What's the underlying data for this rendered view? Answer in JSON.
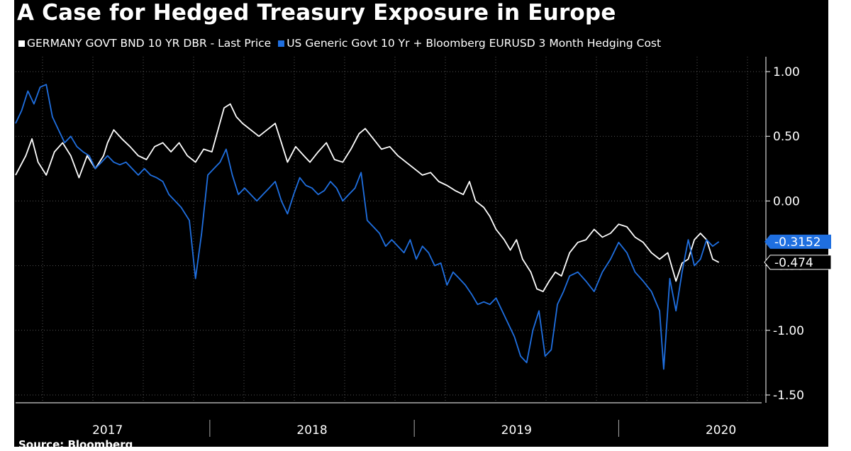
{
  "colors": {
    "background": "#000000",
    "germany": "#ffffff",
    "us_hedged": "#1f6fe0",
    "grid": "#555555",
    "text": "#ffffff"
  },
  "chart_data": {
    "type": "line",
    "title": "A Case for Hedged Treasury Exposure in Europe",
    "source": "Source: Bloomberg",
    "xlabel": "",
    "ylabel": "",
    "xlim": [
      2016.55,
      2020.22
    ],
    "ylim": [
      -1.5,
      1.0
    ],
    "y_ticks": [
      1.0,
      0.5,
      0.0,
      -0.5,
      -1.0,
      -1.5
    ],
    "y_tick_labels": [
      "1.00",
      "0.50",
      "0.00",
      "-0.50",
      "-1.00",
      "-1.50"
    ],
    "x_tick_labels": [
      {
        "label": "2017",
        "at": 2017.0
      },
      {
        "label": "2018",
        "at": 2018.0
      },
      {
        "label": "2019",
        "at": 2019.0
      },
      {
        "label": "2020",
        "at": 2020.0
      }
    ],
    "x_separators": [
      2017.5,
      2018.5,
      2019.5
    ],
    "grid": true,
    "legend_position": "top-left",
    "series": [
      {
        "name": "GERMANY GOVT BND 10 YR DBR - Last Price",
        "color": "#ffffff",
        "last_value": -0.474,
        "last_value_label": "-0.474",
        "points": [
          [
            2016.55,
            0.2
          ],
          [
            2016.6,
            0.35
          ],
          [
            2016.63,
            0.48
          ],
          [
            2016.66,
            0.3
          ],
          [
            2016.7,
            0.2
          ],
          [
            2016.74,
            0.38
          ],
          [
            2016.78,
            0.45
          ],
          [
            2016.82,
            0.35
          ],
          [
            2016.86,
            0.18
          ],
          [
            2016.9,
            0.35
          ],
          [
            2016.94,
            0.25
          ],
          [
            2016.98,
            0.35
          ],
          [
            2017.0,
            0.45
          ],
          [
            2017.03,
            0.55
          ],
          [
            2017.07,
            0.48
          ],
          [
            2017.11,
            0.42
          ],
          [
            2017.15,
            0.35
          ],
          [
            2017.19,
            0.32
          ],
          [
            2017.23,
            0.42
          ],
          [
            2017.27,
            0.45
          ],
          [
            2017.31,
            0.38
          ],
          [
            2017.35,
            0.45
          ],
          [
            2017.39,
            0.35
          ],
          [
            2017.43,
            0.3
          ],
          [
            2017.47,
            0.4
          ],
          [
            2017.51,
            0.38
          ],
          [
            2017.54,
            0.55
          ],
          [
            2017.57,
            0.72
          ],
          [
            2017.6,
            0.75
          ],
          [
            2017.63,
            0.65
          ],
          [
            2017.66,
            0.6
          ],
          [
            2017.7,
            0.55
          ],
          [
            2017.74,
            0.5
          ],
          [
            2017.78,
            0.55
          ],
          [
            2017.82,
            0.6
          ],
          [
            2017.85,
            0.45
          ],
          [
            2017.88,
            0.3
          ],
          [
            2017.92,
            0.42
          ],
          [
            2017.96,
            0.35
          ],
          [
            2017.99,
            0.3
          ],
          [
            2018.03,
            0.38
          ],
          [
            2018.07,
            0.45
          ],
          [
            2018.11,
            0.32
          ],
          [
            2018.15,
            0.3
          ],
          [
            2018.19,
            0.4
          ],
          [
            2018.23,
            0.52
          ],
          [
            2018.26,
            0.56
          ],
          [
            2018.3,
            0.48
          ],
          [
            2018.34,
            0.4
          ],
          [
            2018.38,
            0.42
          ],
          [
            2018.42,
            0.35
          ],
          [
            2018.46,
            0.3
          ],
          [
            2018.5,
            0.25
          ],
          [
            2018.54,
            0.2
          ],
          [
            2018.58,
            0.22
          ],
          [
            2018.62,
            0.15
          ],
          [
            2018.66,
            0.12
          ],
          [
            2018.7,
            0.08
          ],
          [
            2018.74,
            0.05
          ],
          [
            2018.77,
            0.15
          ],
          [
            2018.8,
            0.0
          ],
          [
            2018.84,
            -0.05
          ],
          [
            2018.87,
            -0.12
          ],
          [
            2018.9,
            -0.22
          ],
          [
            2018.94,
            -0.3
          ],
          [
            2018.97,
            -0.38
          ],
          [
            2019.0,
            -0.3
          ],
          [
            2019.03,
            -0.45
          ],
          [
            2019.07,
            -0.55
          ],
          [
            2019.1,
            -0.68
          ],
          [
            2019.13,
            -0.7
          ],
          [
            2019.16,
            -0.62
          ],
          [
            2019.19,
            -0.55
          ],
          [
            2019.22,
            -0.58
          ],
          [
            2019.26,
            -0.4
          ],
          [
            2019.3,
            -0.32
          ],
          [
            2019.34,
            -0.3
          ],
          [
            2019.38,
            -0.22
          ],
          [
            2019.42,
            -0.28
          ],
          [
            2019.46,
            -0.25
          ],
          [
            2019.5,
            -0.18
          ],
          [
            2019.54,
            -0.2
          ],
          [
            2019.58,
            -0.28
          ],
          [
            2019.62,
            -0.32
          ],
          [
            2019.66,
            -0.4
          ],
          [
            2019.7,
            -0.45
          ],
          [
            2019.74,
            -0.4
          ],
          [
            2019.78,
            -0.62
          ],
          [
            2019.81,
            -0.48
          ],
          [
            2019.84,
            -0.45
          ],
          [
            2019.87,
            -0.3
          ],
          [
            2019.9,
            -0.25
          ],
          [
            2019.93,
            -0.3
          ],
          [
            2019.96,
            -0.45
          ],
          [
            2019.99,
            -0.474
          ]
        ]
      },
      {
        "name": "US Generic Govt 10 Yr + Bloomberg EURUSD 3 Month Hedging Cost",
        "color": "#1f6fe0",
        "last_value": -0.3152,
        "last_value_label": "-0.3152",
        "points": [
          [
            2016.55,
            0.6
          ],
          [
            2016.58,
            0.7
          ],
          [
            2016.61,
            0.85
          ],
          [
            2016.64,
            0.75
          ],
          [
            2016.67,
            0.88
          ],
          [
            2016.7,
            0.9
          ],
          [
            2016.73,
            0.65
          ],
          [
            2016.76,
            0.55
          ],
          [
            2016.79,
            0.45
          ],
          [
            2016.82,
            0.5
          ],
          [
            2016.85,
            0.42
          ],
          [
            2016.88,
            0.38
          ],
          [
            2016.91,
            0.35
          ],
          [
            2016.94,
            0.25
          ],
          [
            2016.97,
            0.3
          ],
          [
            2017.0,
            0.35
          ],
          [
            2017.03,
            0.3
          ],
          [
            2017.06,
            0.28
          ],
          [
            2017.09,
            0.3
          ],
          [
            2017.12,
            0.25
          ],
          [
            2017.15,
            0.2
          ],
          [
            2017.18,
            0.25
          ],
          [
            2017.21,
            0.2
          ],
          [
            2017.24,
            0.18
          ],
          [
            2017.27,
            0.15
          ],
          [
            2017.3,
            0.05
          ],
          [
            2017.33,
            0.0
          ],
          [
            2017.36,
            -0.05
          ],
          [
            2017.4,
            -0.15
          ],
          [
            2017.43,
            -0.6
          ],
          [
            2017.46,
            -0.25
          ],
          [
            2017.49,
            0.2
          ],
          [
            2017.52,
            0.25
          ],
          [
            2017.55,
            0.3
          ],
          [
            2017.58,
            0.4
          ],
          [
            2017.61,
            0.2
          ],
          [
            2017.64,
            0.05
          ],
          [
            2017.67,
            0.1
          ],
          [
            2017.7,
            0.05
          ],
          [
            2017.73,
            0.0
          ],
          [
            2017.76,
            0.05
          ],
          [
            2017.79,
            0.1
          ],
          [
            2017.82,
            0.15
          ],
          [
            2017.85,
            0.0
          ],
          [
            2017.88,
            -0.1
          ],
          [
            2017.91,
            0.05
          ],
          [
            2017.94,
            0.18
          ],
          [
            2017.97,
            0.12
          ],
          [
            2018.0,
            0.1
          ],
          [
            2018.03,
            0.05
          ],
          [
            2018.06,
            0.08
          ],
          [
            2018.09,
            0.15
          ],
          [
            2018.12,
            0.1
          ],
          [
            2018.15,
            0.0
          ],
          [
            2018.18,
            0.05
          ],
          [
            2018.21,
            0.1
          ],
          [
            2018.24,
            0.22
          ],
          [
            2018.27,
            -0.15
          ],
          [
            2018.3,
            -0.2
          ],
          [
            2018.33,
            -0.25
          ],
          [
            2018.36,
            -0.35
          ],
          [
            2018.39,
            -0.3
          ],
          [
            2018.42,
            -0.35
          ],
          [
            2018.45,
            -0.4
          ],
          [
            2018.48,
            -0.3
          ],
          [
            2018.51,
            -0.45
          ],
          [
            2018.54,
            -0.35
          ],
          [
            2018.57,
            -0.4
          ],
          [
            2018.6,
            -0.5
          ],
          [
            2018.63,
            -0.48
          ],
          [
            2018.66,
            -0.65
          ],
          [
            2018.69,
            -0.55
          ],
          [
            2018.72,
            -0.6
          ],
          [
            2018.75,
            -0.65
          ],
          [
            2018.78,
            -0.72
          ],
          [
            2018.81,
            -0.8
          ],
          [
            2018.84,
            -0.78
          ],
          [
            2018.87,
            -0.8
          ],
          [
            2018.9,
            -0.75
          ],
          [
            2018.93,
            -0.85
          ],
          [
            2018.96,
            -0.95
          ],
          [
            2018.99,
            -1.05
          ],
          [
            2019.02,
            -1.2
          ],
          [
            2019.05,
            -1.25
          ],
          [
            2019.08,
            -1.0
          ],
          [
            2019.11,
            -0.85
          ],
          [
            2019.14,
            -1.2
          ],
          [
            2019.17,
            -1.15
          ],
          [
            2019.2,
            -0.8
          ],
          [
            2019.23,
            -0.7
          ],
          [
            2019.26,
            -0.58
          ],
          [
            2019.3,
            -0.55
          ],
          [
            2019.34,
            -0.62
          ],
          [
            2019.38,
            -0.7
          ],
          [
            2019.42,
            -0.55
          ],
          [
            2019.46,
            -0.45
          ],
          [
            2019.5,
            -0.32
          ],
          [
            2019.54,
            -0.4
          ],
          [
            2019.58,
            -0.55
          ],
          [
            2019.62,
            -0.62
          ],
          [
            2019.66,
            -0.7
          ],
          [
            2019.7,
            -0.85
          ],
          [
            2019.72,
            -1.3
          ],
          [
            2019.75,
            -0.6
          ],
          [
            2019.78,
            -0.85
          ],
          [
            2019.81,
            -0.55
          ],
          [
            2019.84,
            -0.3
          ],
          [
            2019.87,
            -0.5
          ],
          [
            2019.9,
            -0.45
          ],
          [
            2019.93,
            -0.3
          ],
          [
            2019.96,
            -0.35
          ],
          [
            2019.99,
            -0.3152
          ]
        ]
      }
    ]
  }
}
